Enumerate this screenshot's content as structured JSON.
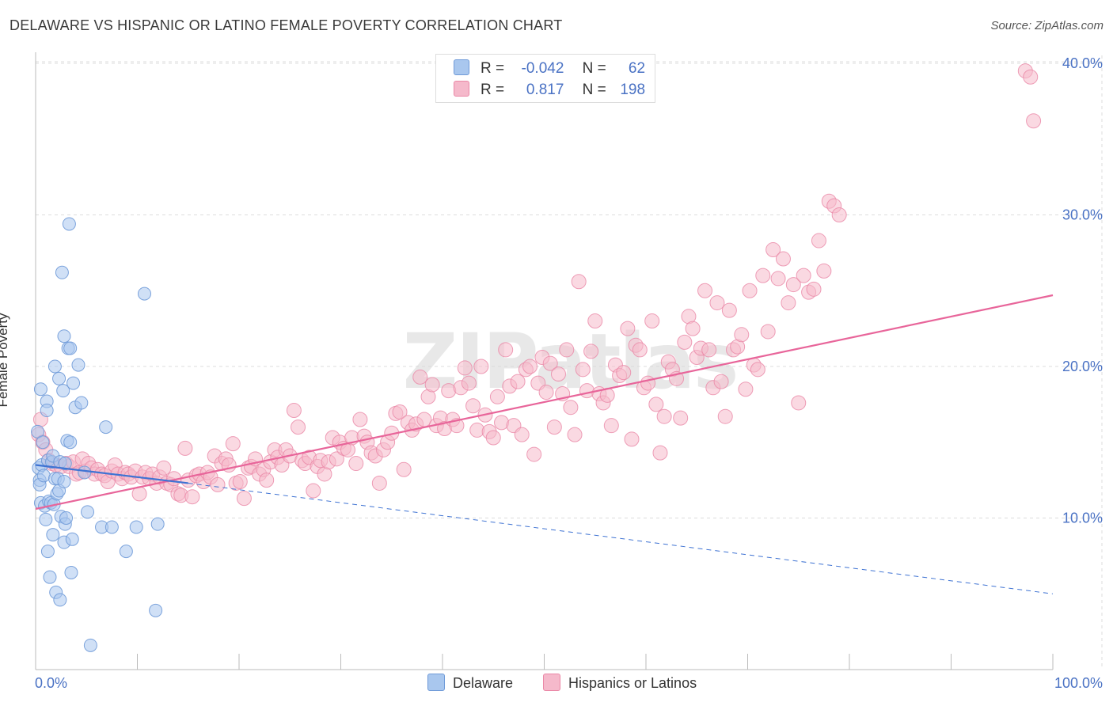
{
  "title": "DELAWARE VS HISPANIC OR LATINO FEMALE POVERTY CORRELATION CHART",
  "source": "Source: ZipAtlas.com",
  "watermark": "ZIPatlas",
  "legend": {
    "delaware": {
      "r_label": "R =",
      "r_value": "-0.042",
      "n_label": "N =",
      "n_value": "62"
    },
    "hispanic": {
      "r_label": "R =",
      "r_value": "0.817",
      "n_label": "N =",
      "n_value": "198"
    }
  },
  "bottom_legend": {
    "delaware": "Delaware",
    "hispanic": "Hispanics or Latinos"
  },
  "colors": {
    "blue_fill": "#a9c7ee",
    "blue_stroke": "#6f9ad8",
    "blue_line": "#3f73d3",
    "pink_fill": "#f5b9cb",
    "pink_stroke": "#ea87a6",
    "pink_line": "#e8659a",
    "axis_label": "#4a72c4",
    "grid": "#dddddd"
  },
  "chart_data": {
    "type": "scatter",
    "title": "DELAWARE VS HISPANIC OR LATINO FEMALE POVERTY CORRELATION CHART",
    "xlabel": "",
    "ylabel": "Female Poverty",
    "xlim": [
      0,
      100
    ],
    "ylim": [
      0,
      42
    ],
    "x_tick_labels": [
      "0.0%",
      "100.0%"
    ],
    "y_ticks": [
      10,
      20,
      30,
      40
    ],
    "y_tick_labels": [
      "10.0%",
      "20.0%",
      "30.0%",
      "40.0%"
    ],
    "grid": true,
    "series": [
      {
        "name": "Delaware",
        "color": "#6f9ad8",
        "r": -0.042,
        "n": 62,
        "trend": {
          "x": [
            0,
            15
          ],
          "y": [
            13.5,
            12.3
          ]
        },
        "trend_dashed": {
          "x": [
            15,
            100
          ],
          "y": [
            12.3,
            5.0
          ]
        },
        "points": [
          [
            0.2,
            15.7
          ],
          [
            0.3,
            13.3
          ],
          [
            0.4,
            12.5
          ],
          [
            0.4,
            12.2
          ],
          [
            0.5,
            11.0
          ],
          [
            0.5,
            18.5
          ],
          [
            0.6,
            13.5
          ],
          [
            0.7,
            15.0
          ],
          [
            0.8,
            12.8
          ],
          [
            0.9,
            10.8
          ],
          [
            1.0,
            9.9
          ],
          [
            1.1,
            17.7
          ],
          [
            1.1,
            17.1
          ],
          [
            1.2,
            13.8
          ],
          [
            1.2,
            7.8
          ],
          [
            1.3,
            11.1
          ],
          [
            1.4,
            6.1
          ],
          [
            1.5,
            11.0
          ],
          [
            1.6,
            13.7
          ],
          [
            1.7,
            8.9
          ],
          [
            1.7,
            14.1
          ],
          [
            1.8,
            10.9
          ],
          [
            1.9,
            12.6
          ],
          [
            1.9,
            20.0
          ],
          [
            2.0,
            5.1
          ],
          [
            2.1,
            11.6
          ],
          [
            2.2,
            12.6
          ],
          [
            2.3,
            11.8
          ],
          [
            2.3,
            19.2
          ],
          [
            2.4,
            4.6
          ],
          [
            2.4,
            13.7
          ],
          [
            2.5,
            10.1
          ],
          [
            2.6,
            26.2
          ],
          [
            2.7,
            18.4
          ],
          [
            2.8,
            8.4
          ],
          [
            2.8,
            22.0
          ],
          [
            2.8,
            12.4
          ],
          [
            2.9,
            13.6
          ],
          [
            2.9,
            9.6
          ],
          [
            3.0,
            10.0
          ],
          [
            3.1,
            15.1
          ],
          [
            3.2,
            21.2
          ],
          [
            3.3,
            29.4
          ],
          [
            3.4,
            15.0
          ],
          [
            3.4,
            21.2
          ],
          [
            3.5,
            6.4
          ],
          [
            3.6,
            8.6
          ],
          [
            3.7,
            18.9
          ],
          [
            3.9,
            17.3
          ],
          [
            4.2,
            20.1
          ],
          [
            4.5,
            17.6
          ],
          [
            4.8,
            13.0
          ],
          [
            5.1,
            10.4
          ],
          [
            5.4,
            1.6
          ],
          [
            6.5,
            9.4
          ],
          [
            6.9,
            16.0
          ],
          [
            7.5,
            9.4
          ],
          [
            8.9,
            7.8
          ],
          [
            9.9,
            9.4
          ],
          [
            10.7,
            24.8
          ],
          [
            11.8,
            3.9
          ],
          [
            12.0,
            9.6
          ]
        ]
      },
      {
        "name": "Hispanics or Latinos",
        "color": "#ea87a6",
        "r": 0.817,
        "n": 198,
        "trend": {
          "x": [
            0,
            100
          ],
          "y": [
            10.6,
            24.7
          ]
        },
        "points": [
          [
            0.3,
            15.5
          ],
          [
            0.5,
            16.5
          ],
          [
            0.7,
            15.0
          ],
          [
            1.0,
            14.5
          ],
          [
            1.3,
            13.8
          ],
          [
            1.6,
            13.6
          ],
          [
            2.0,
            13.5
          ],
          [
            2.5,
            13.4
          ],
          [
            3.0,
            13.6
          ],
          [
            3.3,
            13.4
          ],
          [
            3.7,
            13.7
          ],
          [
            4.0,
            12.9
          ],
          [
            4.3,
            13.0
          ],
          [
            4.6,
            13.9
          ],
          [
            4.9,
            13.1
          ],
          [
            5.2,
            13.6
          ],
          [
            5.5,
            13.3
          ],
          [
            5.8,
            12.9
          ],
          [
            6.1,
            13.2
          ],
          [
            6.5,
            12.9
          ],
          [
            6.8,
            12.8
          ],
          [
            7.1,
            12.4
          ],
          [
            7.5,
            13.1
          ],
          [
            7.8,
            13.5
          ],
          [
            8.1,
            12.9
          ],
          [
            8.5,
            12.6
          ],
          [
            8.8,
            13.0
          ],
          [
            9.1,
            12.9
          ],
          [
            9.4,
            12.7
          ],
          [
            9.8,
            13.1
          ],
          [
            10.2,
            11.6
          ],
          [
            10.5,
            12.7
          ],
          [
            10.8,
            13.0
          ],
          [
            11.2,
            12.6
          ],
          [
            11.5,
            12.9
          ],
          [
            11.9,
            12.3
          ],
          [
            12.2,
            12.7
          ],
          [
            12.6,
            13.3
          ],
          [
            12.9,
            12.3
          ],
          [
            13.3,
            12.2
          ],
          [
            13.6,
            12.6
          ],
          [
            14.0,
            11.6
          ],
          [
            14.3,
            11.5
          ],
          [
            14.7,
            14.6
          ],
          [
            15.0,
            12.5
          ],
          [
            15.4,
            11.4
          ],
          [
            15.8,
            12.8
          ],
          [
            16.1,
            12.9
          ],
          [
            16.5,
            12.4
          ],
          [
            16.9,
            13.0
          ],
          [
            17.2,
            12.7
          ],
          [
            17.6,
            14.1
          ],
          [
            17.9,
            12.2
          ],
          [
            18.3,
            13.6
          ],
          [
            18.7,
            13.9
          ],
          [
            19.0,
            13.5
          ],
          [
            19.4,
            14.9
          ],
          [
            19.7,
            12.3
          ],
          [
            20.1,
            12.4
          ],
          [
            20.5,
            11.3
          ],
          [
            20.9,
            13.3
          ],
          [
            21.2,
            13.4
          ],
          [
            21.6,
            13.9
          ],
          [
            22.0,
            12.9
          ],
          [
            22.4,
            13.2
          ],
          [
            22.7,
            12.5
          ],
          [
            23.1,
            13.7
          ],
          [
            23.5,
            14.5
          ],
          [
            23.8,
            14.0
          ],
          [
            24.2,
            13.5
          ],
          [
            24.6,
            14.5
          ],
          [
            25.0,
            14.1
          ],
          [
            25.4,
            17.1
          ],
          [
            25.8,
            16.0
          ],
          [
            26.2,
            13.8
          ],
          [
            26.5,
            13.6
          ],
          [
            26.9,
            14.0
          ],
          [
            27.3,
            11.8
          ],
          [
            27.7,
            13.4
          ],
          [
            28.0,
            13.8
          ],
          [
            28.4,
            12.9
          ],
          [
            28.8,
            13.7
          ],
          [
            29.2,
            15.3
          ],
          [
            29.6,
            13.9
          ],
          [
            29.9,
            15.0
          ],
          [
            30.3,
            14.6
          ],
          [
            30.7,
            14.5
          ],
          [
            31.1,
            15.3
          ],
          [
            31.5,
            13.6
          ],
          [
            31.9,
            16.5
          ],
          [
            32.3,
            15.4
          ],
          [
            32.6,
            15.0
          ],
          [
            33.0,
            14.3
          ],
          [
            33.4,
            14.1
          ],
          [
            33.8,
            12.3
          ],
          [
            34.2,
            14.5
          ],
          [
            34.6,
            15.0
          ],
          [
            35.0,
            15.6
          ],
          [
            35.4,
            16.9
          ],
          [
            35.8,
            17.0
          ],
          [
            36.2,
            13.2
          ],
          [
            36.6,
            16.3
          ],
          [
            37.0,
            15.8
          ],
          [
            37.4,
            16.2
          ],
          [
            37.8,
            19.3
          ],
          [
            38.2,
            16.5
          ],
          [
            38.6,
            18.0
          ],
          [
            39.0,
            18.8
          ],
          [
            39.4,
            16.1
          ],
          [
            39.8,
            16.6
          ],
          [
            40.2,
            15.9
          ],
          [
            40.6,
            18.4
          ],
          [
            41.0,
            16.5
          ],
          [
            41.4,
            16.1
          ],
          [
            41.8,
            18.6
          ],
          [
            42.2,
            19.9
          ],
          [
            42.6,
            18.9
          ],
          [
            43.0,
            17.4
          ],
          [
            43.4,
            15.8
          ],
          [
            43.8,
            20.0
          ],
          [
            44.2,
            16.8
          ],
          [
            44.6,
            15.7
          ],
          [
            45.0,
            15.3
          ],
          [
            45.4,
            18.0
          ],
          [
            45.8,
            16.3
          ],
          [
            46.2,
            21.1
          ],
          [
            46.6,
            18.7
          ],
          [
            47.0,
            16.1
          ],
          [
            47.4,
            19.0
          ],
          [
            47.8,
            15.5
          ],
          [
            48.2,
            19.8
          ],
          [
            48.6,
            20.0
          ],
          [
            49.0,
            14.2
          ],
          [
            49.4,
            18.9
          ],
          [
            49.8,
            20.6
          ],
          [
            50.2,
            18.3
          ],
          [
            50.6,
            20.2
          ],
          [
            51.0,
            16.0
          ],
          [
            51.4,
            19.5
          ],
          [
            51.8,
            18.2
          ],
          [
            52.2,
            21.1
          ],
          [
            52.6,
            17.3
          ],
          [
            53.0,
            15.5
          ],
          [
            53.4,
            25.6
          ],
          [
            53.8,
            19.8
          ],
          [
            54.2,
            18.4
          ],
          [
            54.6,
            21.0
          ],
          [
            55.0,
            23.0
          ],
          [
            55.4,
            18.2
          ],
          [
            55.8,
            17.6
          ],
          [
            56.2,
            18.1
          ],
          [
            56.6,
            16.1
          ],
          [
            57.0,
            20.1
          ],
          [
            57.4,
            19.4
          ],
          [
            57.8,
            19.6
          ],
          [
            58.2,
            22.5
          ],
          [
            58.6,
            15.2
          ],
          [
            59.0,
            21.4
          ],
          [
            59.4,
            21.1
          ],
          [
            59.8,
            18.6
          ],
          [
            60.2,
            18.9
          ],
          [
            60.6,
            23.0
          ],
          [
            61.0,
            17.5
          ],
          [
            61.4,
            14.3
          ],
          [
            61.8,
            16.7
          ],
          [
            62.2,
            20.3
          ],
          [
            62.6,
            19.8
          ],
          [
            63.0,
            19.2
          ],
          [
            63.4,
            16.6
          ],
          [
            63.8,
            21.6
          ],
          [
            64.2,
            23.3
          ],
          [
            64.6,
            22.5
          ],
          [
            65.0,
            20.6
          ],
          [
            65.4,
            21.2
          ],
          [
            65.8,
            25.0
          ],
          [
            66.2,
            21.1
          ],
          [
            66.6,
            18.6
          ],
          [
            67.0,
            24.2
          ],
          [
            67.4,
            19.0
          ],
          [
            67.8,
            16.7
          ],
          [
            68.2,
            23.7
          ],
          [
            68.6,
            21.1
          ],
          [
            69.0,
            21.3
          ],
          [
            69.4,
            22.1
          ],
          [
            69.8,
            18.5
          ],
          [
            70.2,
            25.0
          ],
          [
            70.6,
            20.1
          ],
          [
            71.0,
            19.8
          ],
          [
            71.5,
            26.0
          ],
          [
            72.0,
            22.3
          ],
          [
            72.5,
            27.7
          ],
          [
            73.0,
            25.8
          ],
          [
            73.5,
            27.1
          ],
          [
            74.0,
            24.2
          ],
          [
            74.5,
            25.4
          ],
          [
            75.0,
            17.6
          ],
          [
            75.5,
            26.0
          ],
          [
            76.0,
            24.9
          ],
          [
            76.5,
            25.1
          ],
          [
            77.0,
            28.3
          ],
          [
            77.5,
            26.3
          ],
          [
            78.0,
            30.9
          ],
          [
            78.5,
            30.6
          ],
          [
            79.0,
            30.0
          ],
          [
            97.3,
            39.5
          ],
          [
            97.8,
            39.1
          ],
          [
            98.1,
            36.2
          ]
        ]
      }
    ]
  }
}
